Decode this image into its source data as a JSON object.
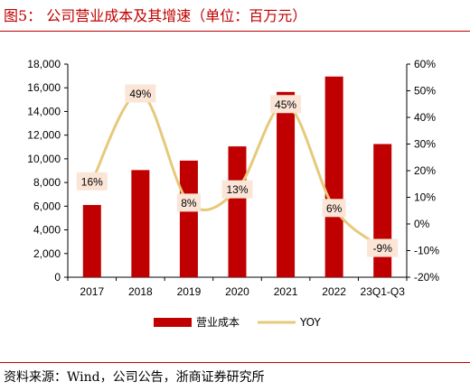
{
  "header": {
    "title": "图5： 公司营业成本及其增速（单位：百万元）"
  },
  "footer": {
    "source": "资料来源：Wind，公司公告，浙商证券研究所"
  },
  "colors": {
    "bar": "#c00000",
    "line": "#e6c97a",
    "label_bg": "#fbe5d6",
    "rule": "#c00000"
  },
  "chart_data": {
    "type": "bar",
    "categories": [
      "2017",
      "2018",
      "2019",
      "2020",
      "2021",
      "2022",
      "23Q1-Q3"
    ],
    "series": [
      {
        "name": "营业成本",
        "type": "bar",
        "axis": "left",
        "values": [
          6100,
          9050,
          9850,
          11050,
          15650,
          16950,
          11250
        ]
      },
      {
        "name": "YOY",
        "type": "line",
        "axis": "right",
        "smooth": true,
        "values": [
          16,
          49,
          8,
          13,
          45,
          6,
          -9
        ],
        "labels": [
          "16%",
          "49%",
          "8%",
          "13%",
          "45%",
          "6%",
          "-9%"
        ]
      }
    ],
    "y_left": {
      "min": 0,
      "max": 18000,
      "ticks": [
        "0",
        "2,000",
        "4,000",
        "6,000",
        "8,000",
        "10,000",
        "12,000",
        "14,000",
        "16,000",
        "18,000"
      ]
    },
    "y_right": {
      "min": -20,
      "max": 60,
      "ticks": [
        "-20%",
        "-10%",
        "0%",
        "10%",
        "20%",
        "30%",
        "40%",
        "50%",
        "60%"
      ]
    },
    "grid": false,
    "legend": "bottom"
  }
}
